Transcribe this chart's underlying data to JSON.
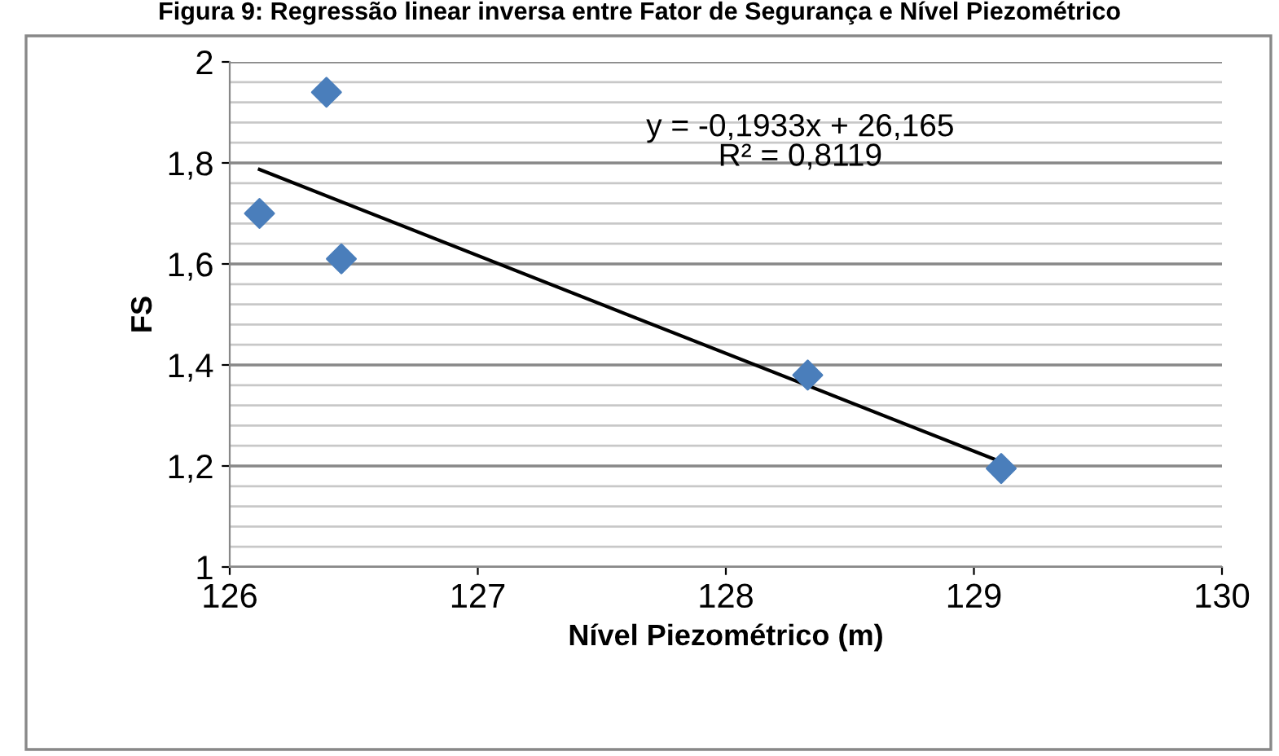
{
  "chart_data": {
    "type": "scatter",
    "title": "Figura 9: Regressão linear inversa entre Fator de Segurança e Nível Piezométrico",
    "xlabel": "Nível Piezométrico (m)",
    "ylabel": "FS",
    "series": [
      {
        "color": "#4a7ebb",
        "marker": "diamond",
        "x": [
          126.12,
          126.39,
          126.45,
          128.33,
          129.11
        ],
        "values": [
          1.7,
          1.94,
          1.61,
          1.38,
          1.195
        ]
      },
      {
        "type": "line",
        "color": "#000000",
        "marker": "none",
        "x": [
          126.12,
          129.11
        ],
        "values": [
          1.787,
          1.208
        ]
      }
    ],
    "annotations": [
      "y = -0,1933x + 26,165\nR² = 0,8119"
    ],
    "xlim": [
      126,
      130
    ],
    "xticks": [
      126,
      127,
      128,
      129,
      130
    ],
    "ylim": [
      1,
      2
    ],
    "yticks": [
      {
        "value": 1,
        "label": "1"
      },
      {
        "value": 1.04,
        "label": null
      },
      {
        "value": 1.08,
        "label": null
      },
      {
        "value": 1.12,
        "label": null
      },
      {
        "value": 1.16,
        "label": null
      },
      {
        "value": 1.2,
        "label": "1,2"
      },
      {
        "value": 1.24,
        "label": null
      },
      {
        "value": 1.28,
        "label": null
      },
      {
        "value": 1.32,
        "label": null
      },
      {
        "value": 1.36,
        "label": null
      },
      {
        "value": 1.4,
        "label": "1,4"
      },
      {
        "value": 1.44,
        "label": null
      },
      {
        "value": 1.48,
        "label": null
      },
      {
        "value": 1.52,
        "label": null
      },
      {
        "value": 1.56,
        "label": null
      },
      {
        "value": 1.6,
        "label": "1,6"
      },
      {
        "value": 1.64,
        "label": null
      },
      {
        "value": 1.68,
        "label": null
      },
      {
        "value": 1.72,
        "label": null
      },
      {
        "value": 1.76,
        "label": null
      },
      {
        "value": 1.8,
        "label": "1,8"
      },
      {
        "value": 1.84,
        "label": null
      },
      {
        "value": 1.88,
        "label": null
      },
      {
        "value": 1.92,
        "label": null
      },
      {
        "value": 1.96,
        "label": null
      },
      {
        "value": 2,
        "label": "2"
      }
    ],
    "grid": "y",
    "legend": false
  }
}
